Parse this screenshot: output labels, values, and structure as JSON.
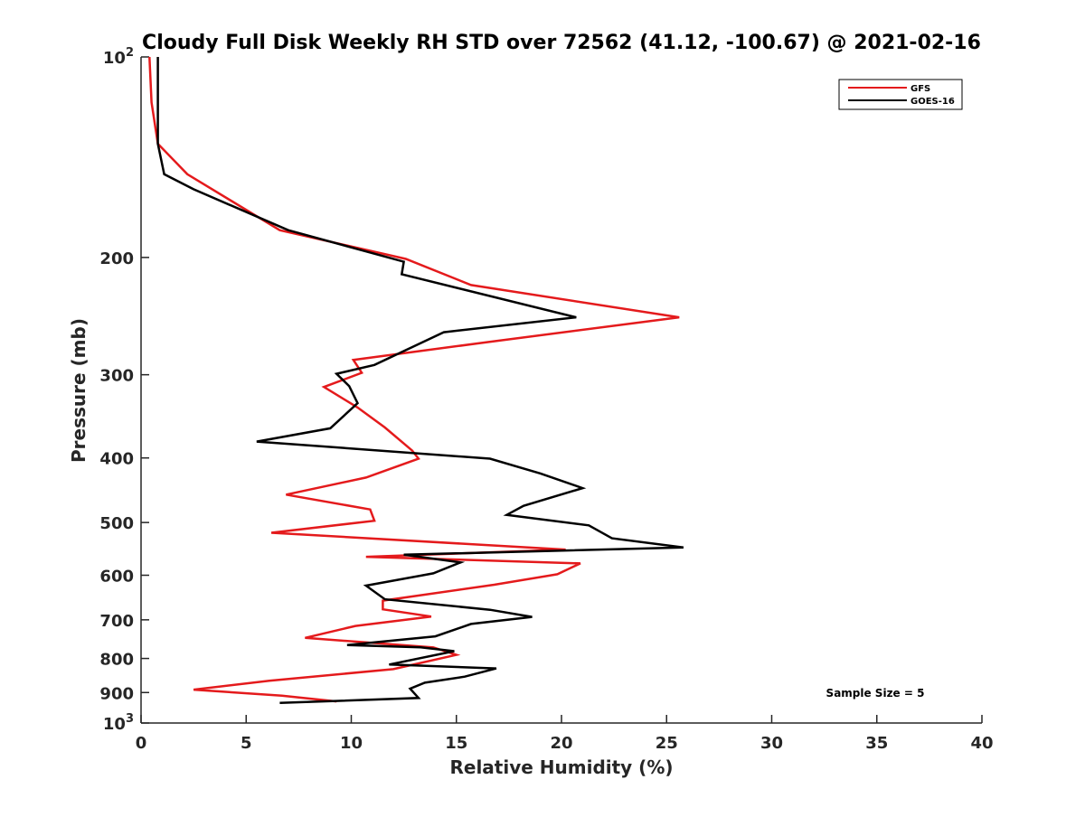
{
  "chart_data": {
    "type": "line",
    "title": "Cloudy Full Disk Weekly RH STD over 72562 (41.12, -100.67) @ 2021-02-16",
    "xlabel": "Relative Humidity (%)",
    "ylabel": "Pressure (mb)",
    "xlim": [
      0,
      40
    ],
    "ylim": [
      100,
      1000
    ],
    "y_scale": "log",
    "y_reversed": true,
    "grid": false,
    "legend_position": "top-right",
    "x_ticks": [
      0,
      5,
      10,
      15,
      20,
      25,
      30,
      35,
      40
    ],
    "y_ticks": [
      {
        "value": 100,
        "base": "10",
        "exp": "2"
      },
      {
        "value": 200,
        "label": "200"
      },
      {
        "value": 300,
        "label": "300"
      },
      {
        "value": 400,
        "label": "400"
      },
      {
        "value": 500,
        "label": "500"
      },
      {
        "value": 600,
        "label": "600"
      },
      {
        "value": 700,
        "label": "700"
      },
      {
        "value": 800,
        "label": "800"
      },
      {
        "value": 900,
        "label": "900"
      },
      {
        "value": 1000,
        "base": "10",
        "exp": "3"
      }
    ],
    "annotation": "Sample Size = 5",
    "series": [
      {
        "name": "GFS",
        "color": "#e41a1c",
        "x": [
          0.4,
          0.5,
          0.8,
          2.2,
          6.6,
          12.6,
          15.7,
          25.6,
          16.5,
          10.1,
          10.5,
          8.7,
          10.3,
          11.6,
          12.9,
          13.2,
          10.7,
          6.9,
          10.9,
          11.1,
          6.2,
          20.2,
          10.7,
          20.9,
          19.8,
          16.8,
          11.5,
          11.5,
          13.8,
          10.2,
          7.8,
          13.9,
          15.0,
          12.0,
          6.1,
          2.5,
          6.7,
          9.3
        ],
        "y": [
          100,
          117,
          135,
          150,
          182,
          201,
          220,
          246,
          268,
          285,
          298,
          313,
          336,
          360,
          390,
          401,
          428,
          454,
          478,
          497,
          518,
          549,
          563,
          576,
          598,
          620,
          655,
          675,
          692,
          715,
          745,
          770,
          790,
          830,
          864,
          891,
          910,
          928
        ]
      },
      {
        "name": "GOES-16",
        "color": "#000000",
        "x": [
          0.8,
          0.8,
          0.8,
          1.1,
          2.5,
          7.0,
          12.5,
          12.4,
          20.7,
          14.4,
          11.1,
          9.3,
          9.9,
          10.3,
          9.0,
          5.5,
          16.6,
          19.0,
          21.0,
          18.2,
          17.4,
          21.3,
          22.4,
          25.8,
          12.5,
          15.2,
          13.9,
          10.7,
          11.6,
          16.6,
          18.6,
          15.7,
          14.0,
          9.8,
          13.3,
          14.9,
          11.8,
          16.9,
          15.4,
          13.5,
          12.8,
          13.2,
          6.6
        ],
        "y": [
          100,
          117,
          135,
          150,
          158,
          182,
          203,
          212,
          246,
          259,
          290,
          299,
          312,
          331,
          361,
          378,
          401,
          422,
          444,
          472,
          487,
          505,
          528,
          545,
          559,
          574,
          596,
          622,
          652,
          676,
          693,
          710,
          741,
          764,
          770,
          780,
          817,
          828,
          852,
          870,
          888,
          917,
          933
        ]
      }
    ]
  }
}
